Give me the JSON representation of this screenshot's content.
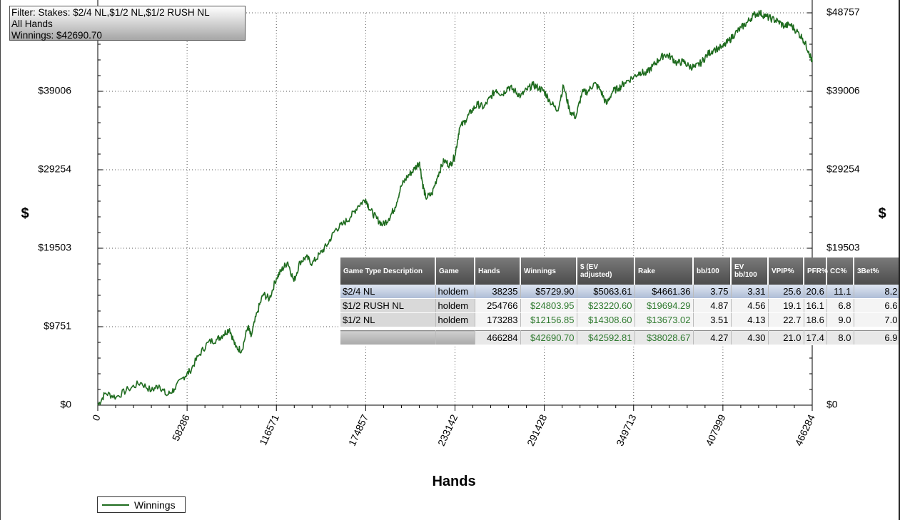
{
  "filter": {
    "line1": "Filter: Stakes: $2/4 NL,$1/2 NL,$1/2 RUSH NL",
    "line2": "All Hands",
    "line3": "Winnings: $42690.70"
  },
  "chart_data": {
    "type": "line",
    "xlabel": "Hands",
    "ylabel": "$",
    "xlim": [
      0,
      466284
    ],
    "ylim": [
      0,
      48757
    ],
    "x_ticks": [
      "0",
      "58286",
      "116571",
      "174857",
      "233142",
      "291428",
      "349713",
      "407999",
      "466284"
    ],
    "y_ticks": [
      "$0",
      "$9751",
      "$19503",
      "$29254",
      "$39006",
      "$48757"
    ],
    "grid": true,
    "legend": "bottom-left",
    "series": [
      {
        "name": "Winnings",
        "color": "#1e6b1e",
        "x": [
          0,
          5000,
          12000,
          20000,
          28000,
          35000,
          40000,
          45000,
          50000,
          56000,
          60000,
          66000,
          72000,
          78000,
          82000,
          86000,
          90000,
          94000,
          98000,
          100000,
          104000,
          108000,
          112000,
          116571,
          120000,
          124000,
          128000,
          132000,
          136000,
          140000,
          145000,
          150000,
          155000,
          160000,
          165000,
          170000,
          174857,
          178000,
          182000,
          186000,
          190000,
          194000,
          198000,
          202000,
          206000,
          210000,
          212000,
          214000,
          218000,
          222000,
          226000,
          230000,
          233142,
          236000,
          240000,
          244000,
          248000,
          252000,
          256000,
          260000,
          264000,
          268000,
          272000,
          276000,
          280000,
          284000,
          288000,
          291428,
          295000,
          300000,
          304000,
          308000,
          312000,
          316000,
          320000,
          324000,
          328000,
          332000,
          336000,
          340000,
          344000,
          349713,
          354000,
          358000,
          362000,
          366000,
          370000,
          374000,
          378000,
          382000,
          386000,
          390000,
          394000,
          398000,
          402000,
          407999,
          412000,
          416000,
          420000,
          424000,
          428000,
          432000,
          436000,
          440000,
          444000,
          448000,
          452000,
          456000,
          460000,
          464000,
          466284
        ],
        "y": [
          0,
          1500,
          1000,
          2000,
          2800,
          1800,
          2500,
          1200,
          2000,
          3500,
          4200,
          6200,
          7800,
          8200,
          8800,
          9500,
          7200,
          6800,
          9800,
          8500,
          11500,
          13800,
          13200,
          15800,
          16800,
          17800,
          15400,
          17800,
          18400,
          17600,
          18800,
          20000,
          21800,
          22500,
          23400,
          24800,
          25600,
          24200,
          23200,
          22400,
          23200,
          24600,
          27200,
          28400,
          29200,
          30200,
          27500,
          25800,
          26200,
          28600,
          30400,
          29800,
          31000,
          34400,
          35400,
          36600,
          37400,
          37000,
          38200,
          39200,
          38600,
          39600,
          39100,
          38400,
          39200,
          39800,
          39400,
          39000,
          37800,
          36600,
          39700,
          36600,
          35800,
          38800,
          39000,
          40000,
          39200,
          37400,
          39000,
          39400,
          40100,
          40800,
          41400,
          41200,
          42100,
          42900,
          43600,
          43300,
          42500,
          42700,
          42100,
          42000,
          42600,
          43600,
          44200,
          44500,
          45300,
          46200,
          46900,
          47600,
          48500,
          48757,
          48300,
          48000,
          47700,
          47100,
          47300,
          46500,
          45600,
          44000,
          42690.7
        ]
      }
    ]
  },
  "table": {
    "headers": [
      "Game Type Description",
      "Game",
      "Hands",
      "Winnings",
      "$ (EV adjusted)",
      "Rake",
      "bb/100",
      "EV bb/100",
      "VPIP%",
      "PFR%",
      "CC%",
      "3Bet%"
    ],
    "rows": [
      [
        "$2/4 NL",
        "holdem",
        "38235",
        "$5729.90",
        "$5063.61",
        "$4661.36",
        "3.75",
        "3.31",
        "25.6",
        "20.6",
        "11.1",
        "8.2"
      ],
      [
        "$1/2 RUSH NL",
        "holdem",
        "254766",
        "$24803.95",
        "$23220.60",
        "$19694.29",
        "4.87",
        "4.56",
        "19.1",
        "16.1",
        "6.8",
        "6.6"
      ],
      [
        "$1/2 NL",
        "holdem",
        "173283",
        "$12156.85",
        "$14308.60",
        "$13673.02",
        "3.51",
        "4.13",
        "22.7",
        "18.6",
        "9.0",
        "7.0"
      ]
    ],
    "totals": [
      "466284",
      "$42690.70",
      "$42592.81",
      "$38028.67",
      "4.27",
      "4.30",
      "21.0",
      "17.4",
      "8.0",
      "6.9"
    ]
  },
  "legend": {
    "label": "Winnings",
    "color": "#1e6b1e"
  }
}
